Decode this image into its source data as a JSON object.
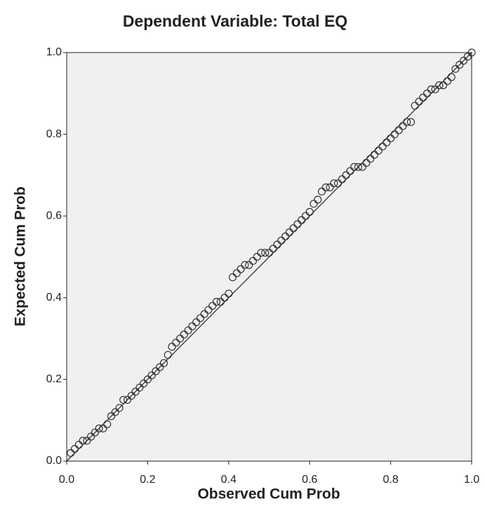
{
  "chart_data": {
    "type": "scatter",
    "title": "Dependent Variable: Total EQ",
    "x_label": "Observed Cum Prob",
    "y_label": "Expected Cum Prob",
    "xlim": [
      0,
      1
    ],
    "ylim": [
      0,
      1
    ],
    "xticks": [
      {
        "value": 0,
        "label": "0.0"
      },
      0.2,
      0.4,
      0.6,
      0.8,
      {
        "value": 1,
        "label": "1.0"
      }
    ],
    "yticks": [
      {
        "value": 0,
        "label": "0.0"
      },
      0.2,
      0.4,
      0.6,
      0.8,
      {
        "value": 1,
        "label": "1.0"
      }
    ],
    "color": "#333333",
    "reference_line": true,
    "x": [
      0.01,
      0.02,
      0.03,
      0.04,
      0.05,
      0.06,
      0.07,
      0.08,
      0.09,
      0.1,
      0.11,
      0.12,
      0.13,
      0.14,
      0.15,
      0.16,
      0.17,
      0.18,
      0.19,
      0.2,
      0.21,
      0.22,
      0.23,
      0.24,
      0.25,
      0.26,
      0.27,
      0.28,
      0.29,
      0.3,
      0.31,
      0.32,
      0.33,
      0.34,
      0.35,
      0.36,
      0.37,
      0.38,
      0.39,
      0.4,
      0.41,
      0.42,
      0.43,
      0.44,
      0.45,
      0.46,
      0.47,
      0.48,
      0.49,
      0.5,
      0.51,
      0.52,
      0.53,
      0.54,
      0.55,
      0.56,
      0.57,
      0.58,
      0.59,
      0.6,
      0.61,
      0.62,
      0.63,
      0.64,
      0.65,
      0.66,
      0.67,
      0.68,
      0.69,
      0.7,
      0.71,
      0.72,
      0.73,
      0.74,
      0.75,
      0.76,
      0.77,
      0.78,
      0.79,
      0.8,
      0.81,
      0.82,
      0.83,
      0.84,
      0.85,
      0.86,
      0.87,
      0.88,
      0.89,
      0.9,
      0.91,
      0.92,
      0.93,
      0.94,
      0.95,
      0.96,
      0.97,
      0.98,
      0.99,
      1.0
    ],
    "values": [
      0.02,
      0.03,
      0.04,
      0.05,
      0.05,
      0.06,
      0.07,
      0.08,
      0.08,
      0.09,
      0.11,
      0.12,
      0.13,
      0.15,
      0.15,
      0.16,
      0.17,
      0.18,
      0.19,
      0.2,
      0.21,
      0.22,
      0.23,
      0.24,
      0.26,
      0.28,
      0.29,
      0.3,
      0.31,
      0.32,
      0.33,
      0.34,
      0.35,
      0.36,
      0.37,
      0.38,
      0.39,
      0.39,
      0.4,
      0.41,
      0.45,
      0.46,
      0.47,
      0.48,
      0.48,
      0.49,
      0.5,
      0.51,
      0.51,
      0.51,
      0.52,
      0.53,
      0.54,
      0.55,
      0.56,
      0.57,
      0.58,
      0.59,
      0.6,
      0.61,
      0.63,
      0.64,
      0.66,
      0.67,
      0.67,
      0.68,
      0.68,
      0.69,
      0.7,
      0.71,
      0.72,
      0.72,
      0.72,
      0.73,
      0.74,
      0.75,
      0.76,
      0.77,
      0.78,
      0.79,
      0.8,
      0.81,
      0.82,
      0.83,
      0.83,
      0.87,
      0.88,
      0.89,
      0.9,
      0.91,
      0.91,
      0.92,
      0.92,
      0.93,
      0.94,
      0.96,
      0.97,
      0.98,
      0.99,
      1.0
    ]
  }
}
